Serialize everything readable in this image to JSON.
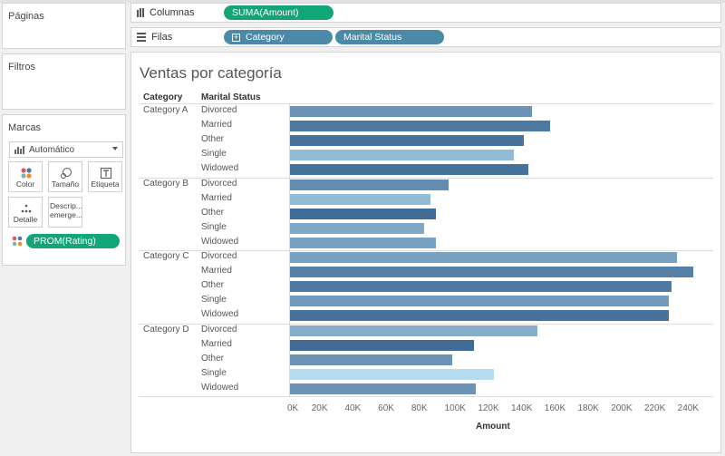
{
  "left_pane": {
    "pages_title": "Páginas",
    "filters_title": "Filtros",
    "marks_title": "Marcas",
    "mark_type": "Automático",
    "mark_cards": [
      {
        "label": "Color",
        "icon": "color-dots-icon"
      },
      {
        "label": "Tamaño",
        "icon": "size-icon"
      },
      {
        "label": "Etiqueta",
        "icon": "label-icon"
      },
      {
        "label": "Detalle",
        "icon": "detail-dots-icon"
      },
      {
        "label": "Descrip... emerge...",
        "icon": "tooltip-icon"
      }
    ],
    "color_pill": "PROM(Rating)"
  },
  "shelves": {
    "columns_label": "Columnas",
    "columns_pill": "SUMA(Amount)",
    "rows_label": "Filas",
    "rows_pills": [
      "Category",
      "Marital Status"
    ]
  },
  "colors": {
    "green_pill": "#12a577",
    "blue_pill": "#4a8aa8",
    "bar_darkest": "#2b5887",
    "bar_lightest": "#b7dcf0"
  },
  "chart_data": {
    "type": "bar",
    "orientation": "horizontal",
    "title": "Ventas por categoría",
    "row_headers": [
      "Category",
      "Marital Status"
    ],
    "xlabel": "Amount",
    "xlim": [
      0,
      244000
    ],
    "xticks": [
      "0K",
      "20K",
      "40K",
      "60K",
      "80K",
      "100K",
      "120K",
      "140K",
      "160K",
      "180K",
      "200K",
      "220K",
      "240K"
    ],
    "color_by": "PROM(Rating)",
    "groups": [
      {
        "category": "Category A",
        "rows": [
          {
            "status": "Divorced",
            "value": 146000,
            "shade": 0.55
          },
          {
            "status": "Married",
            "value": 157000,
            "shade": 0.75
          },
          {
            "status": "Other",
            "value": 141000,
            "shade": 0.8
          },
          {
            "status": "Single",
            "value": 135000,
            "shade": 0.25
          },
          {
            "status": "Widowed",
            "value": 144000,
            "shade": 0.8
          }
        ]
      },
      {
        "category": "Category B",
        "rows": [
          {
            "status": "Divorced",
            "value": 96000,
            "shade": 0.6
          },
          {
            "status": "Married",
            "value": 85000,
            "shade": 0.25
          },
          {
            "status": "Other",
            "value": 88000,
            "shade": 0.85
          },
          {
            "status": "Single",
            "value": 81000,
            "shade": 0.4
          },
          {
            "status": "Widowed",
            "value": 88000,
            "shade": 0.45
          }
        ]
      },
      {
        "category": "Category C",
        "rows": [
          {
            "status": "Divorced",
            "value": 233000,
            "shade": 0.45
          },
          {
            "status": "Married",
            "value": 243000,
            "shade": 0.7
          },
          {
            "status": "Other",
            "value": 230000,
            "shade": 0.75
          },
          {
            "status": "Single",
            "value": 228000,
            "shade": 0.5
          },
          {
            "status": "Widowed",
            "value": 228000,
            "shade": 0.8
          }
        ]
      },
      {
        "category": "Category D",
        "rows": [
          {
            "status": "Divorced",
            "value": 149000,
            "shade": 0.35
          },
          {
            "status": "Married",
            "value": 111000,
            "shade": 0.85
          },
          {
            "status": "Other",
            "value": 98000,
            "shade": 0.55
          },
          {
            "status": "Single",
            "value": 123000,
            "shade": 0.0
          },
          {
            "status": "Widowed",
            "value": 112000,
            "shade": 0.55
          }
        ]
      }
    ]
  }
}
